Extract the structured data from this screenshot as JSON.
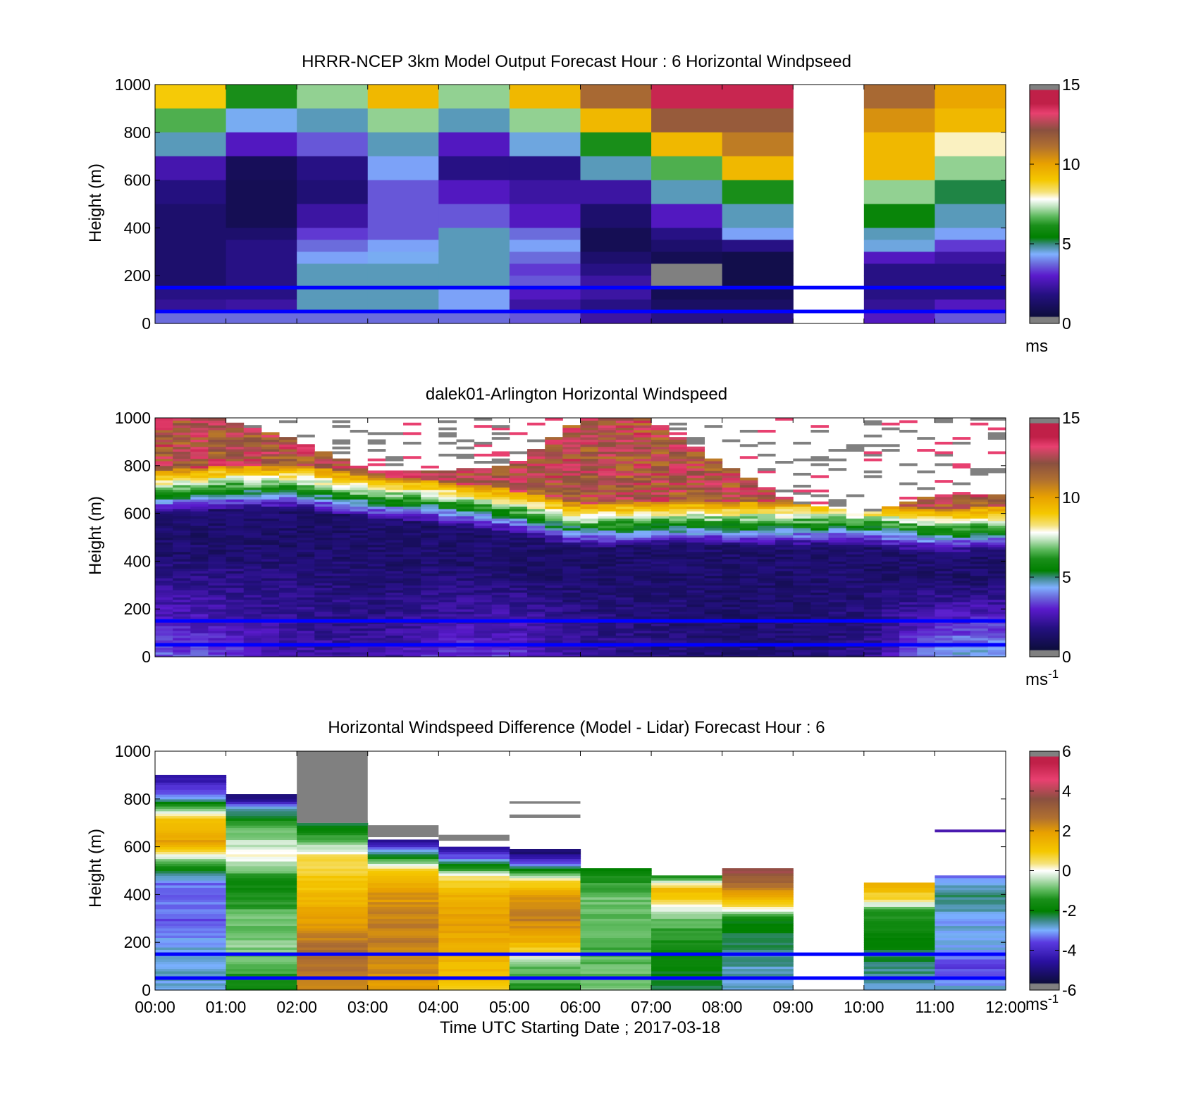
{
  "figure": {
    "xlabel": "Time UTC  Starting Date ; 2017-03-18",
    "x_ticks": [
      "00:00",
      "01:00",
      "02:00",
      "03:00",
      "04:00",
      "05:00",
      "06:00",
      "07:00",
      "08:00",
      "09:00",
      "10:00",
      "11:00",
      "12:00"
    ],
    "reference_lines": {
      "heights_m": [
        150,
        50
      ],
      "color": "#0000ff"
    }
  },
  "chart_data": [
    {
      "type": "heatmap",
      "title": "HRRR-NCEP 3km Model Output   Forecast Hour : 6 Horizontal Windpseed",
      "ylabel": "Height (m)",
      "ylim": [
        0,
        1000
      ],
      "y_ticks": [
        "0",
        "200",
        "400",
        "600",
        "800",
        "1000"
      ],
      "xlim": [
        "00:00",
        "12:00"
      ],
      "show_x_tick_labels": false,
      "colorbar": {
        "min": 0,
        "max": 15,
        "ticks": [
          "0",
          "5",
          "10",
          "15"
        ],
        "unit": "ms",
        "unit_sup": "",
        "palette": "windspeed"
      },
      "missing_columns": [
        "09:00"
      ],
      "grid_levels_m": [
        1000,
        900,
        800,
        700,
        600,
        500,
        400,
        350,
        300,
        250,
        200,
        150,
        100,
        50,
        0
      ],
      "columns": [
        {
          "t": "00:00",
          "values": [
            9,
            6.5,
            4.5,
            2.2,
            1.4,
            1.0,
            1.0,
            1.0,
            1.0,
            1.0,
            1.0,
            1.5,
            1.8,
            3.5
          ]
        },
        {
          "t": "01:00",
          "values": [
            6,
            4.2,
            2.5,
            0.6,
            0.5,
            0.5,
            1.0,
            1.5,
            1.5,
            1.5,
            1.5,
            1.5,
            2.0,
            3.5
          ]
        },
        {
          "t": "02:00",
          "values": [
            7,
            4.5,
            3.3,
            1.5,
            1.2,
            2.0,
            3.0,
            3.5,
            4.0,
            4.5,
            4.5,
            4.5,
            4.5,
            3.5
          ]
        },
        {
          "t": "03:00",
          "values": [
            9.5,
            7,
            4.5,
            4.0,
            3.3,
            3.3,
            3.3,
            4.0,
            4.2,
            4.5,
            4.5,
            4.5,
            4.5,
            3.5
          ]
        },
        {
          "t": "04:00",
          "values": [
            7,
            4.5,
            2.5,
            1.5,
            2.5,
            3.3,
            4.5,
            4.5,
            4.5,
            4.5,
            4.5,
            4.0,
            4.0,
            3.5
          ]
        },
        {
          "t": "05:00",
          "values": [
            9.5,
            7,
            4.3,
            1.5,
            2.0,
            2.5,
            3.5,
            4.0,
            3.5,
            3.0,
            3.3,
            2.5,
            2.0,
            3.3
          ]
        },
        {
          "t": "06:00",
          "values": [
            11.5,
            9.5,
            6,
            4.5,
            2.0,
            1.0,
            0.5,
            0.5,
            1.0,
            1.5,
            2.0,
            2.0,
            1.5,
            2.0
          ]
        },
        {
          "t": "07:00",
          "values": [
            14,
            12,
            9.5,
            6.5,
            4.5,
            2.5,
            1.5,
            1.0,
            0.5,
            -1,
            -1,
            0.5,
            0.8,
            1.5
          ]
        },
        {
          "t": "08:00",
          "values": [
            14,
            12,
            11,
            9.5,
            6,
            4.5,
            4.0,
            1.5,
            0.3,
            0.3,
            0.3,
            0.5,
            0.8,
            1.5
          ]
        },
        {
          "t": "09:00",
          "values": null
        },
        {
          "t": "10:00",
          "values": [
            11.5,
            10.5,
            9.5,
            9.5,
            7,
            5.5,
            4.5,
            4.3,
            2.5,
            1.5,
            1.5,
            1.5,
            1.8,
            2.5
          ]
        },
        {
          "t": "11:00",
          "values": [
            10,
            9.5,
            8,
            7,
            5,
            4.5,
            4.0,
            3.0,
            2.0,
            1.5,
            1.5,
            1.5,
            2.5,
            3.3
          ]
        }
      ]
    },
    {
      "type": "heatmap",
      "title": "dalek01-Arlington  Horizontal Windspeed",
      "ylabel": "Height (m)",
      "ylim": [
        0,
        1000
      ],
      "y_ticks": [
        "0",
        "200",
        "400",
        "600",
        "800",
        "1000"
      ],
      "xlim": [
        "00:00",
        "12:00"
      ],
      "show_x_tick_labels": false,
      "colorbar": {
        "min": 0,
        "max": 15,
        "ticks": [
          "0",
          "5",
          "10",
          "15"
        ],
        "unit": "ms",
        "unit_sup": "-1",
        "palette": "windspeed"
      },
      "description_profile": {
        "time_fraction_points": [
          0,
          0.08,
          0.17,
          0.25,
          0.33,
          0.42,
          0.5,
          0.58,
          0.67,
          0.75,
          0.83,
          0.92,
          1.0
        ],
        "top_valid_height_m": [
          1000,
          1000,
          900,
          780,
          780,
          800,
          1000,
          1000,
          800,
          650,
          600,
          680,
          680
        ],
        "shear_layer_top_m": [
          600,
          620,
          620,
          580,
          560,
          520,
          460,
          470,
          470,
          470,
          470,
          440,
          450
        ],
        "surface_speed_ms": [
          3.5,
          3.0,
          2.2,
          1.8,
          2.8,
          3.0,
          1.8,
          1.5,
          1.0,
          1.2,
          1.5,
          4.3,
          4.3
        ]
      }
    },
    {
      "type": "heatmap",
      "title": "Horizontal Windspeed Difference (Model - Lidar) Forecast Hour : 6",
      "ylabel": "Height (m)",
      "ylim": [
        0,
        1000
      ],
      "y_ticks": [
        "0",
        "200",
        "400",
        "600",
        "800",
        "1000"
      ],
      "xlim": [
        "00:00",
        "12:00"
      ],
      "show_x_tick_labels": true,
      "colorbar": {
        "min": -6,
        "max": 6,
        "ticks": [
          "-6",
          "-4",
          "-2",
          "0",
          "2",
          "4",
          "6"
        ],
        "unit": "ms",
        "unit_sup": "-1",
        "palette": "difference"
      },
      "columns": [
        {
          "t": "00:00",
          "top_m": 900,
          "anchors": [
            [
              880,
              -4.8
            ],
            [
              800,
              -3
            ],
            [
              720,
              1
            ],
            [
              620,
              2
            ],
            [
              540,
              -1
            ],
            [
              450,
              -3.5
            ],
            [
              300,
              -3.7
            ],
            [
              150,
              -3
            ],
            [
              0,
              -3
            ]
          ]
        },
        {
          "t": "01:00",
          "top_m": 820,
          "anchors": [
            [
              810,
              -5.5
            ],
            [
              760,
              -3
            ],
            [
              680,
              -1
            ],
            [
              560,
              0
            ],
            [
              450,
              -2
            ],
            [
              300,
              -1
            ],
            [
              150,
              -0.8
            ],
            [
              0,
              -2
            ]
          ]
        },
        {
          "t": "02:00",
          "top_m": 700,
          "anchors": [
            [
              690,
              -2.5
            ],
            [
              620,
              -1
            ],
            [
              560,
              0.5
            ],
            [
              450,
              1
            ],
            [
              300,
              2
            ],
            [
              150,
              3
            ],
            [
              0,
              2.5
            ]
          ]
        },
        {
          "t": "03:00",
          "top_m": 630,
          "anchors": [
            [
              620,
              -5
            ],
            [
              560,
              -2
            ],
            [
              500,
              1
            ],
            [
              420,
              2
            ],
            [
              300,
              2.5
            ],
            [
              150,
              2.5
            ],
            [
              0,
              2
            ]
          ]
        },
        {
          "t": "04:00",
          "top_m": 600,
          "anchors": [
            [
              590,
              -5
            ],
            [
              530,
              -2.5
            ],
            [
              470,
              0.5
            ],
            [
              400,
              1.5
            ],
            [
              300,
              2
            ],
            [
              150,
              1.5
            ],
            [
              0,
              1
            ]
          ]
        },
        {
          "t": "05:00",
          "top_m": 590,
          "anchors": [
            [
              580,
              -5.5
            ],
            [
              520,
              -3
            ],
            [
              460,
              0.5
            ],
            [
              400,
              2
            ],
            [
              300,
              2.5
            ],
            [
              200,
              1.5
            ],
            [
              100,
              -1
            ],
            [
              0,
              -1.5
            ]
          ]
        },
        {
          "t": "06:00",
          "top_m": 510,
          "anchors": [
            [
              500,
              -2
            ],
            [
              400,
              -1
            ],
            [
              200,
              -1.2
            ],
            [
              0,
              -1
            ]
          ]
        },
        {
          "t": "07:00",
          "top_m": 480,
          "anchors": [
            [
              470,
              -1.5
            ],
            [
              420,
              1.5
            ],
            [
              370,
              0.5
            ],
            [
              300,
              -1
            ],
            [
              150,
              -2
            ],
            [
              0,
              -2.5
            ]
          ]
        },
        {
          "t": "08:00",
          "top_m": 510,
          "anchors": [
            [
              500,
              4
            ],
            [
              430,
              2.5
            ],
            [
              350,
              0.5
            ],
            [
              300,
              -2
            ],
            [
              150,
              -2.8
            ],
            [
              0,
              -3
            ]
          ]
        },
        {
          "t": "09:00",
          "top_m": null,
          "anchors": []
        },
        {
          "t": "10:00",
          "top_m": 450,
          "anchors": [
            [
              440,
              1.5
            ],
            [
              380,
              0.5
            ],
            [
              330,
              -1.5
            ],
            [
              200,
              -2.2
            ],
            [
              0,
              -3
            ]
          ]
        },
        {
          "t": "11:00",
          "top_m": 480,
          "anchors": [
            [
              470,
              -3.5
            ],
            [
              400,
              -2.5
            ],
            [
              300,
              -3.2
            ],
            [
              200,
              -3
            ],
            [
              100,
              -4
            ],
            [
              0,
              -3
            ]
          ]
        }
      ]
    }
  ]
}
